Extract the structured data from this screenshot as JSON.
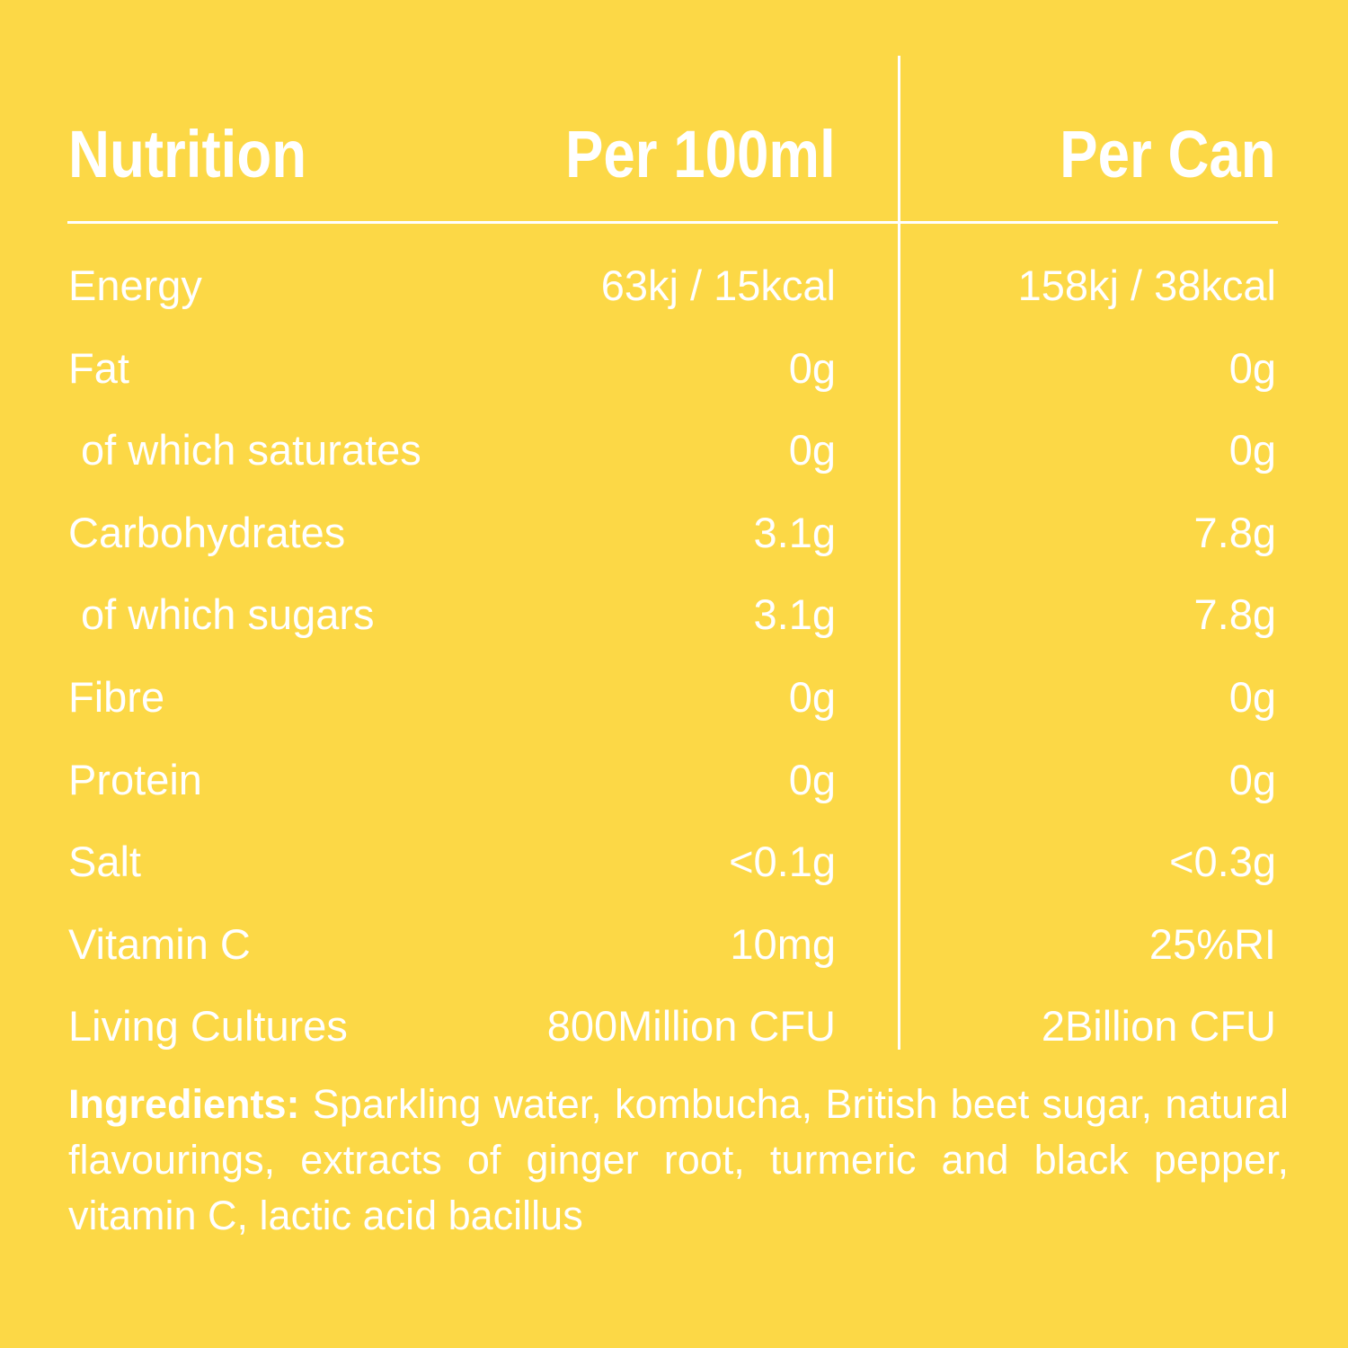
{
  "header": {
    "nutrition": "Nutrition",
    "per_100ml": "Per 100ml",
    "per_can": "Per Can"
  },
  "rows": [
    {
      "label": "Energy",
      "per_100ml": "63kj / 15kcal",
      "per_can": "158kj / 38kcal"
    },
    {
      "label": "Fat",
      "per_100ml": "0g",
      "per_can": "0g"
    },
    {
      "label": "of which saturates",
      "per_100ml": "0g",
      "per_can": "0g"
    },
    {
      "label": "Carbohydrates",
      "per_100ml": "3.1g",
      "per_can": "7.8g"
    },
    {
      "label": "of which sugars",
      "per_100ml": "3.1g",
      "per_can": "7.8g"
    },
    {
      "label": "Fibre",
      "per_100ml": "0g",
      "per_can": "0g"
    },
    {
      "label": "Protein",
      "per_100ml": "0g",
      "per_can": "0g"
    },
    {
      "label": "Salt",
      "per_100ml": "<0.1g",
      "per_can": "<0.3g"
    },
    {
      "label": "Vitamin C",
      "per_100ml": "10mg",
      "per_can": "25%RI"
    },
    {
      "label": "Living Cultures",
      "per_100ml": "800Million CFU",
      "per_can": "2Billion CFU"
    }
  ],
  "ingredients": {
    "title": "Ingredients:",
    "text": "Sparkling water, kombucha, British beet sugar, natural flavourings, extracts of ginger root, turmeric and black pepper, vitamin C, lactic acid bacillus"
  },
  "colors": {
    "background": "#FCD846",
    "text": "#FFFFFF"
  }
}
